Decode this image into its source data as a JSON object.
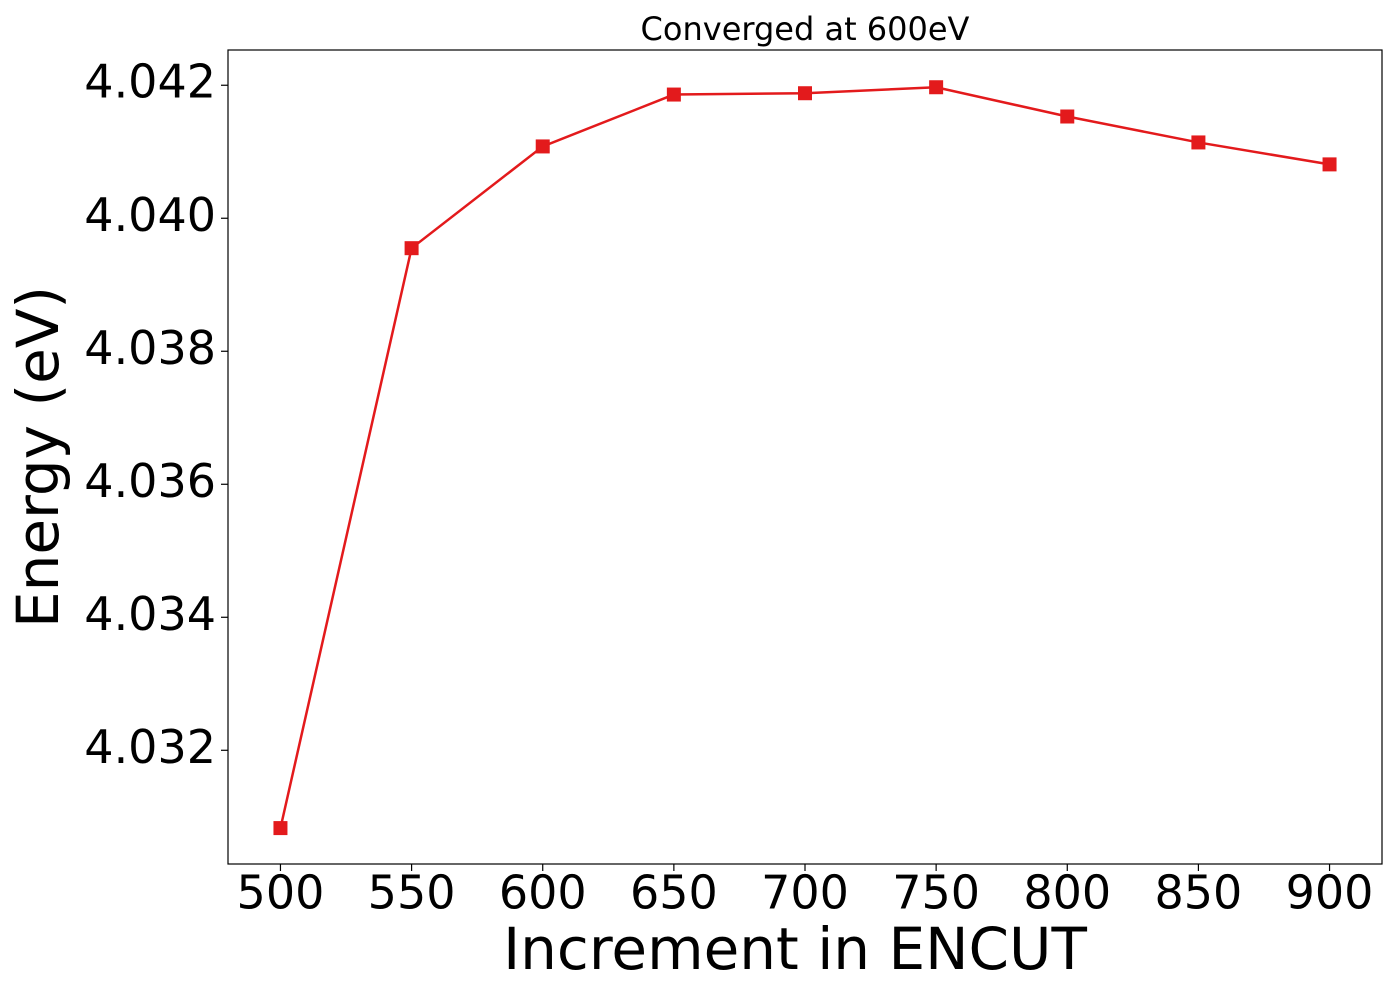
{
  "chart_data": {
    "type": "line",
    "title": "Converged at 600eV",
    "xlabel": "Increment in ENCUT",
    "ylabel": "Energy (eV)",
    "x": [
      500,
      550,
      600,
      650,
      700,
      750,
      800,
      850,
      900
    ],
    "values": [
      4.03083,
      4.03955,
      4.04108,
      4.04186,
      4.04188,
      4.04197,
      4.04153,
      4.04114,
      4.04081
    ],
    "color": "#e31a1c",
    "marker": "square",
    "xlim": [
      480,
      920
    ],
    "xticks": [
      500,
      550,
      600,
      650,
      700,
      750,
      800,
      850,
      900
    ],
    "ylim": [
      4.03029,
      4.04253
    ],
    "yticks": [
      4.032,
      4.034,
      4.036,
      4.038,
      {
        "value": 4.04,
        "label": "4.040"
      },
      4.042
    ],
    "grid": false
  }
}
